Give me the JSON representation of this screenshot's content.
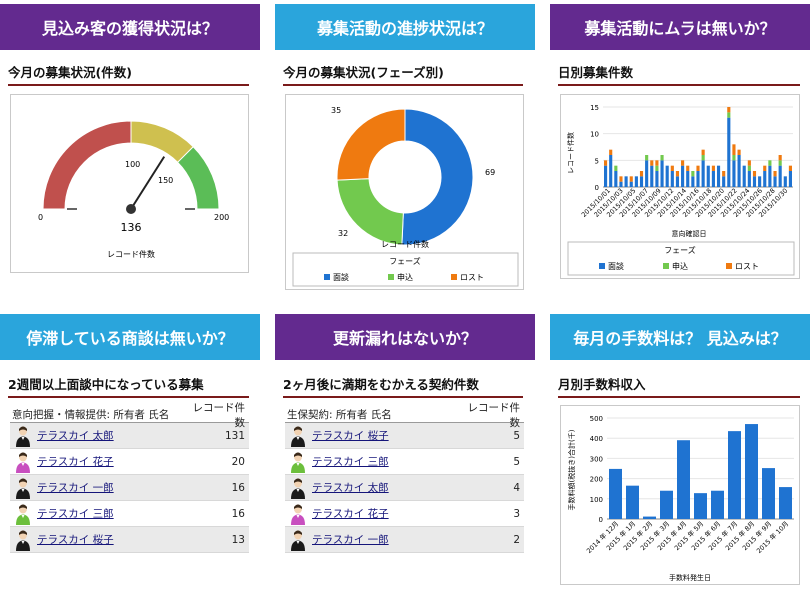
{
  "headers": [
    {
      "text": "見込み客の獲得状況は？"
    },
    {
      "text": "募集活動の進捗状況は？"
    },
    {
      "text": "募集活動にムラは無いか？"
    },
    {
      "text": "停滞している商談は無いか？"
    },
    {
      "text": "更新漏れはないか？"
    },
    {
      "text": "毎月の手数料は？ 見込みは？"
    }
  ],
  "gauge": {
    "title": "今月の募集状況(件数)",
    "label": "レコード件数",
    "value": 136,
    "min": 0,
    "max": 200,
    "breakpoints": [
      100,
      150
    ],
    "ticks": [
      "0",
      "100",
      "150",
      "200"
    ],
    "value_text": "136",
    "colors": [
      "#c0504d",
      "#cfc04f",
      "#5bbd57"
    ]
  },
  "donut": {
    "title": "今月の募集状況(フェーズ別)",
    "label": "レコード件数",
    "legend_title": "フェーズ",
    "chart_data": {
      "type": "pie",
      "categories": [
        "面談",
        "申込",
        "ロスト"
      ],
      "values": [
        69,
        32,
        35
      ],
      "value_labels": [
        "69",
        "32",
        "35"
      ],
      "colors": [
        "#1f73d1",
        "#72c94e",
        "#ef7a10"
      ]
    }
  },
  "daily": {
    "title": "日別募集件数",
    "ylabel": "レコード件数",
    "xlabel": "意向確認日",
    "legend_title": "フェーズ",
    "yticks": [
      "0",
      "5",
      "10",
      "15"
    ],
    "xticks": [
      "2015/10/01",
      "2015/10/03",
      "2015/10/05",
      "2015/10/07",
      "2015/10/09",
      "2015/10/12",
      "2015/10/14",
      "2015/10/16",
      "2015/10/18",
      "2015/10/20",
      "2015/10/22",
      "2015/10/24",
      "2015/10/26",
      "2015/10/28",
      "2015/10/30"
    ],
    "chart_data": {
      "type": "bar",
      "stacked": true,
      "ylim": [
        0,
        15
      ],
      "series": [
        {
          "name": "面談",
          "color": "#1f73d1",
          "values": [
            4,
            6,
            3,
            1,
            2,
            1,
            2,
            2,
            5,
            4,
            3,
            5,
            4,
            3,
            2,
            4,
            3,
            2,
            3,
            5,
            4,
            3,
            4,
            2,
            13,
            5,
            6,
            4,
            3,
            2,
            2,
            3,
            4,
            2,
            4,
            2,
            3
          ]
        },
        {
          "name": "申込",
          "color": "#72c94e",
          "values": [
            0,
            0,
            1,
            0,
            0,
            0,
            0,
            0,
            1,
            0,
            1,
            1,
            0,
            0,
            0,
            0,
            0,
            1,
            0,
            1,
            0,
            0,
            0,
            0,
            1,
            1,
            0,
            0,
            1,
            0,
            0,
            0,
            1,
            0,
            1,
            0,
            0
          ]
        },
        {
          "name": "ロスト",
          "color": "#ef7a10",
          "values": [
            1,
            1,
            0,
            1,
            0,
            1,
            0,
            1,
            0,
            1,
            1,
            0,
            0,
            1,
            1,
            1,
            1,
            0,
            1,
            1,
            0,
            1,
            0,
            1,
            1,
            2,
            1,
            0,
            1,
            1,
            0,
            1,
            0,
            1,
            1,
            0,
            1
          ]
        }
      ]
    }
  },
  "stale": {
    "title": "2週間以上面談中になっている募集",
    "col1": "意向把握・情報提供: 所有者 氏名",
    "col2": "レコード件数",
    "rows": [
      {
        "name": "テラスカイ 太郎",
        "value": "131",
        "shirt": "#1a1a1a"
      },
      {
        "name": "テラスカイ 花子",
        "value": "20",
        "shirt": "#c84fbf"
      },
      {
        "name": "テラスカイ 一郎",
        "value": "16",
        "shirt": "#1a1a1a"
      },
      {
        "name": "テラスカイ 三郎",
        "value": "16",
        "shirt": "#6cbf3c"
      },
      {
        "name": "テラスカイ 桜子",
        "value": "13",
        "shirt": "#1a1a1a"
      }
    ]
  },
  "renewal": {
    "title": "2ヶ月後に満期をむかえる契約件数",
    "col1": "生保契約: 所有者 氏名",
    "col2": "レコード件数",
    "rows": [
      {
        "name": "テラスカイ 桜子",
        "value": "5",
        "shirt": "#1a1a1a"
      },
      {
        "name": "テラスカイ 三郎",
        "value": "5",
        "shirt": "#6cbf3c"
      },
      {
        "name": "テラスカイ 太郎",
        "value": "4",
        "shirt": "#1a1a1a"
      },
      {
        "name": "テラスカイ 花子",
        "value": "3",
        "shirt": "#c84fbf"
      },
      {
        "name": "テラスカイ 一郎",
        "value": "2",
        "shirt": "#1a1a1a"
      }
    ]
  },
  "fee": {
    "title": "月別手数料収入",
    "ylabel": "手数料額(税抜き)合計(千)",
    "xlabel": "手数料発生日",
    "chart_data": {
      "type": "bar",
      "categories": [
        "2014 年 12月",
        "2015 年 1月",
        "2015 年 2月",
        "2015 年 3月",
        "2015 年 4月",
        "2015 年 5月",
        "2015 年 6月",
        "2015 年 7月",
        "2015 年 8月",
        "2015 年 9月",
        "2015 年 10月"
      ],
      "values": [
        248,
        165,
        12,
        140,
        390,
        128,
        140,
        435,
        470,
        252,
        158
      ],
      "ylim": [
        0,
        500
      ],
      "yticks": [
        "0",
        "100",
        "200",
        "300",
        "400",
        "500"
      ],
      "color": "#1f73d1"
    }
  }
}
